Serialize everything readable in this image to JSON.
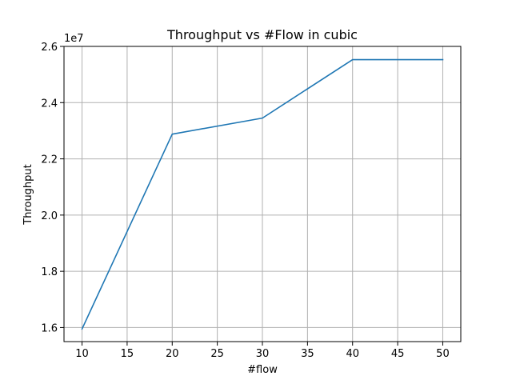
{
  "chart_data": {
    "type": "line",
    "title": "Throughput vs #Flow in cubic",
    "xlabel": "#flow",
    "ylabel": "Throughput",
    "y_offset_text": "1e7",
    "x": [
      10,
      20,
      30,
      40,
      50
    ],
    "series": [
      {
        "name": "cubic",
        "values": [
          15950000,
          22880000,
          23450000,
          25530000,
          25530000
        ]
      }
    ],
    "xlim": [
      8,
      52
    ],
    "ylim": [
      15500000,
      26000000
    ],
    "x_ticks": [
      10,
      15,
      20,
      25,
      30,
      35,
      40,
      45,
      50
    ],
    "x_tick_labels": [
      "10",
      "15",
      "20",
      "25",
      "30",
      "35",
      "40",
      "45",
      "50"
    ],
    "y_ticks": [
      16000000,
      18000000,
      20000000,
      22000000,
      24000000,
      26000000
    ],
    "y_tick_labels": [
      "1.6",
      "1.8",
      "2.0",
      "2.2",
      "2.4",
      "2.6"
    ],
    "grid": true,
    "colors": {
      "line": "#1f77b4",
      "grid": "#b0b0b0",
      "axes": "#000000",
      "background": "#ffffff"
    }
  }
}
